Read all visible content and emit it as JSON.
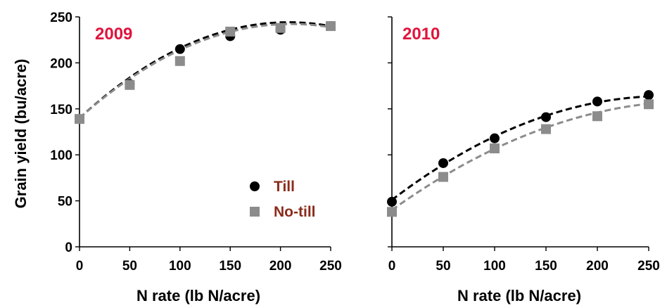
{
  "chart_data": [
    {
      "type": "scatter",
      "panel_label": "2009",
      "xlabel": "N rate (lb N/acre)",
      "ylabel": "Grain yield (bu/acre)",
      "xlim": [
        0,
        250
      ],
      "ylim": [
        0,
        250
      ],
      "xticks": [
        "0",
        "50",
        "100",
        "150",
        "200",
        "250"
      ],
      "yticks": [
        "0",
        "50",
        "100",
        "150",
        "200",
        "250"
      ],
      "grid": false,
      "legend": {
        "placement": "bottom-right",
        "entries": [
          "Till",
          "No-till"
        ]
      },
      "series": [
        {
          "name": "Till",
          "marker": "circle",
          "color": "#000000",
          "x": [
            0,
            50,
            100,
            150,
            200,
            250
          ],
          "y": [
            139,
            177,
            215,
            229,
            236,
            240
          ],
          "fit": {
            "a": 140,
            "b": 1.0,
            "c": -0.0024
          }
        },
        {
          "name": "No-till",
          "marker": "square",
          "color": "#8c8c8c",
          "x": [
            0,
            50,
            100,
            150,
            200,
            250
          ],
          "y": [
            139,
            176,
            202,
            234,
            238,
            240
          ],
          "fit": {
            "a": 140,
            "b": 0.97,
            "c": -0.0023
          }
        }
      ]
    },
    {
      "type": "scatter",
      "panel_label": "2010",
      "xlabel": "N rate (lb N/acre)",
      "ylabel": "",
      "xlim": [
        0,
        250
      ],
      "ylim": [
        0,
        250
      ],
      "xticks": [
        "0",
        "50",
        "100",
        "150",
        "200",
        "250"
      ],
      "grid": false,
      "series": [
        {
          "name": "Till",
          "marker": "circle",
          "color": "#000000",
          "x": [
            0,
            50,
            100,
            150,
            200,
            250
          ],
          "y": [
            49,
            91,
            118,
            141,
            158,
            165
          ],
          "fit": {
            "a": 51,
            "b": 0.85,
            "c": -0.0016
          }
        },
        {
          "name": "No-till",
          "marker": "square",
          "color": "#8c8c8c",
          "x": [
            0,
            50,
            100,
            150,
            200,
            250
          ],
          "y": [
            38,
            76,
            107,
            128,
            142,
            155
          ],
          "fit": {
            "a": 40,
            "b": 0.8,
            "c": -0.00135
          }
        }
      ]
    }
  ],
  "colors": {
    "year_label": "#e0143c",
    "legend_text": "#8b2b1a",
    "till": "#000000",
    "notill": "#8c8c8c"
  }
}
